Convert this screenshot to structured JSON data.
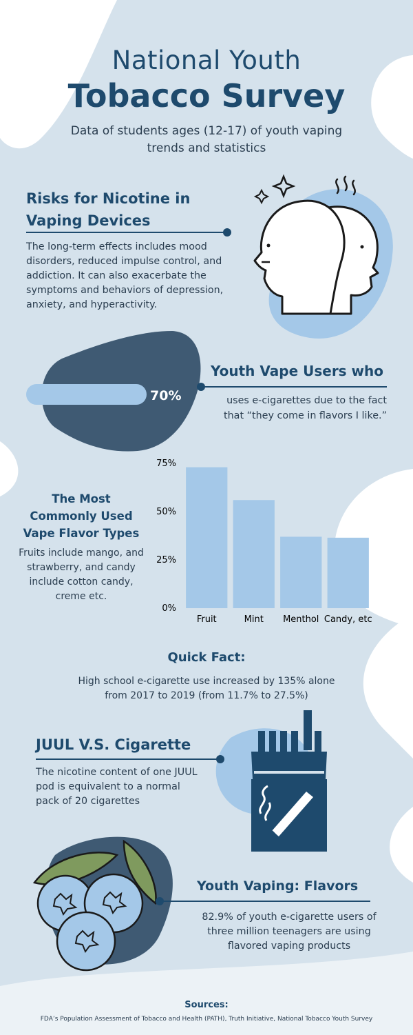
{
  "header": {
    "title_line1": "National Youth",
    "title_line2": "Tobacco Survey",
    "subtitle": "Data of students ages (12-17) of youth vaping trends and statistics"
  },
  "risks": {
    "heading": "Risks for Nicotine in Vaping Devices",
    "body": "The long-term effects includes mood disorders, reduced impulse control, and addiction. It can also exacerbate the symptoms and behaviors of depression, anxiety, and hyperactivity."
  },
  "vape_users": {
    "percent_label": "70%",
    "percent_value": 70,
    "heading": "Youth Vape Users who",
    "body": "uses e-cigarettes due to the fact that “they come in flavors I like.”"
  },
  "flavors": {
    "heading": "The Most Commonly Used Vape Flavor Types",
    "body": "Fruits include mango, and strawberry, and candy include cotton candy, creme etc."
  },
  "chart_data": {
    "type": "bar",
    "categories": [
      "Fruit",
      "Mint",
      "Menthol",
      "Candy, etc"
    ],
    "values": [
      73,
      56,
      37,
      36.5
    ],
    "ylim": [
      0,
      75
    ],
    "yticks": [
      "0%",
      "25%",
      "50%",
      "75%"
    ],
    "ytick_values": [
      0,
      25,
      50,
      75
    ],
    "bar_color": "#a4c8e8",
    "grid": false
  },
  "quick_fact": {
    "heading": "Quick Fact:",
    "body": "High school e-cigarette use increased by 135% alone from 2017 to 2019 (from 11.7% to 27.5%)"
  },
  "juul": {
    "heading": "JUUL V.S. Cigarette",
    "body": "The nicotine content of one JUUL pod is equivalent to a normal pack of 20 cigarettes"
  },
  "youth_flavors": {
    "heading": "Youth Vaping: Flavors",
    "body": "82.9% of youth e-cigarette users of three million teenagers are using flavored vaping products"
  },
  "sources": {
    "heading": "Sources:",
    "body": "FDA’s Population Assessment of Tobacco and Health (PATH), Truth Initiative, National Tobacco Youth Survey"
  },
  "colors": {
    "background": "#d5e2ec",
    "navy": "#1e4a6d",
    "light_blue": "#a4c8e8",
    "slate": "#3f5a73",
    "white": "#ffffff"
  }
}
